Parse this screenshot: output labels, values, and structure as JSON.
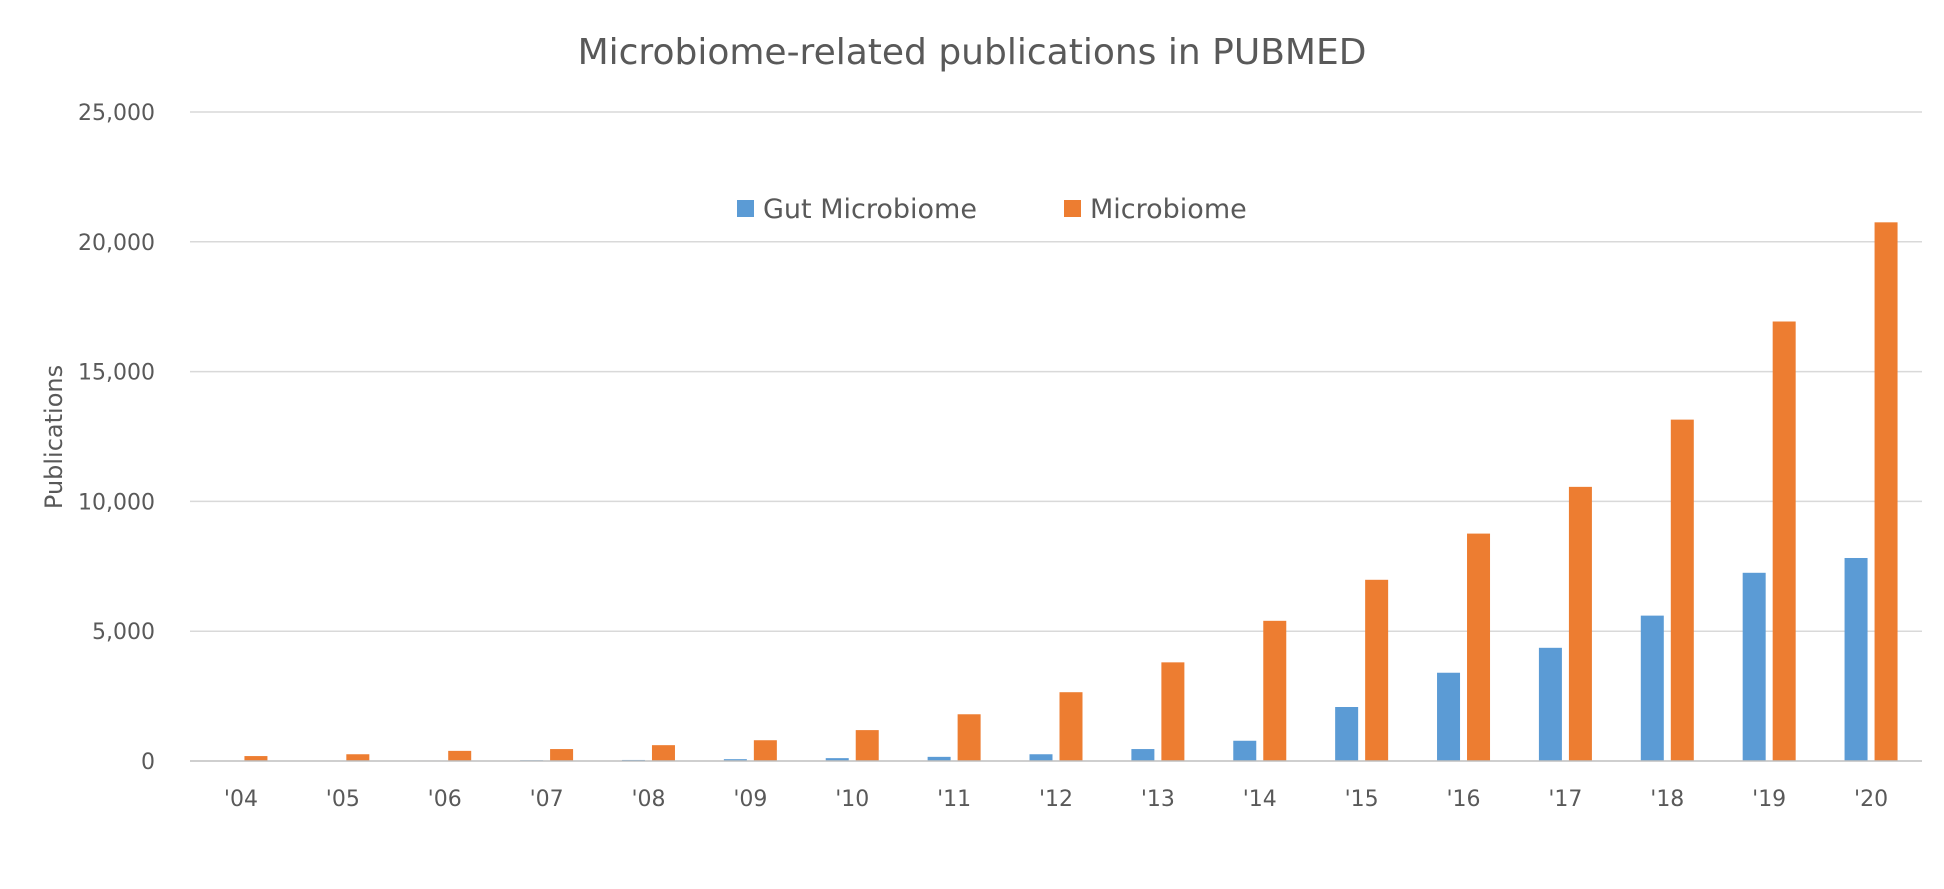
{
  "chart_data": {
    "type": "bar",
    "title": "Microbiome-related publications in PUBMED",
    "xlabel": "",
    "ylabel": "Publications",
    "categories": [
      "'04",
      "'05",
      "'06",
      "'07",
      "'08",
      "'09",
      "'10",
      "'11",
      "'12",
      "'13",
      "'14",
      "'15",
      "'16",
      "'17",
      "'18",
      "'19",
      "'20"
    ],
    "series": [
      {
        "name": "Gut Microbiome",
        "color": "#5b9bd5",
        "values": [
          10,
          15,
          20,
          30,
          40,
          70,
          110,
          160,
          260,
          460,
          780,
          2080,
          3400,
          4360,
          5600,
          7250,
          7820
        ]
      },
      {
        "name": "Microbiome",
        "color": "#ed7d31",
        "values": [
          190,
          260,
          390,
          460,
          610,
          800,
          1190,
          1800,
          2650,
          3800,
          5400,
          6980,
          8760,
          10560,
          13150,
          16930,
          20750
        ]
      }
    ],
    "ylim": [
      0,
      25000
    ],
    "yticks": [
      0,
      5000,
      10000,
      15000,
      20000,
      25000
    ],
    "ytick_labels": [
      "0",
      "5,000",
      "10,000",
      "15,000",
      "20,000",
      "25,000"
    ],
    "grid": true,
    "legend_position": "top-center"
  }
}
